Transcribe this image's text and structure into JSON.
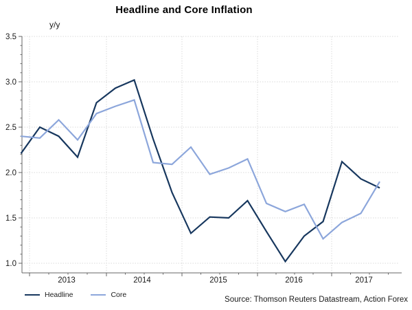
{
  "title": "Headline and Core Inflation",
  "y_axis_unit": "y/y",
  "source": "Source: Thomson Reuters Datastream, Action Forex",
  "colors": {
    "headline": "#17375E",
    "core": "#8CA6DB",
    "gridline": "#D9D9D9",
    "axis": "#666666",
    "tick_label": "#1A1A1A"
  },
  "chart_data": {
    "type": "line",
    "x": [
      "2012 Q4",
      "2013 Q1",
      "2013 Q2",
      "2013 Q3",
      "2013 Q4",
      "2014 Q1",
      "2014 Q2",
      "2014 Q3",
      "2014 Q4",
      "2015 Q1",
      "2015 Q2",
      "2015 Q3",
      "2015 Q4",
      "2016 Q1",
      "2016 Q2",
      "2016 Q3",
      "2016 Q4",
      "2017 Q1",
      "2017 Q2",
      "2017 Q3"
    ],
    "series": [
      {
        "name": "Headline",
        "color": "#17375E",
        "values": [
          2.21,
          2.5,
          2.4,
          2.17,
          2.77,
          2.93,
          3.02,
          2.37,
          1.78,
          1.33,
          1.51,
          1.5,
          1.69,
          1.35,
          1.02,
          1.3,
          1.46,
          2.12,
          1.93,
          1.83
        ]
      },
      {
        "name": "Core",
        "color": "#8CA6DB",
        "values": [
          2.4,
          2.38,
          2.58,
          2.36,
          2.65,
          2.73,
          2.8,
          2.11,
          2.09,
          2.28,
          1.98,
          2.05,
          2.15,
          1.66,
          1.57,
          1.65,
          1.27,
          1.45,
          1.55,
          1.9
        ]
      }
    ],
    "title": "Headline and Core Inflation",
    "xlabel": "",
    "ylabel": "y/y",
    "ylim": [
      1.0,
      3.5
    ],
    "y_ticks": [
      3.5,
      3.0,
      2.5,
      2.0,
      1.5,
      1.0
    ],
    "x_tick_labels": [
      "2013",
      "2014",
      "2015",
      "2016",
      "2017"
    ],
    "grid": true,
    "grid_style": "dotted",
    "legend_position": "bottom-left"
  }
}
